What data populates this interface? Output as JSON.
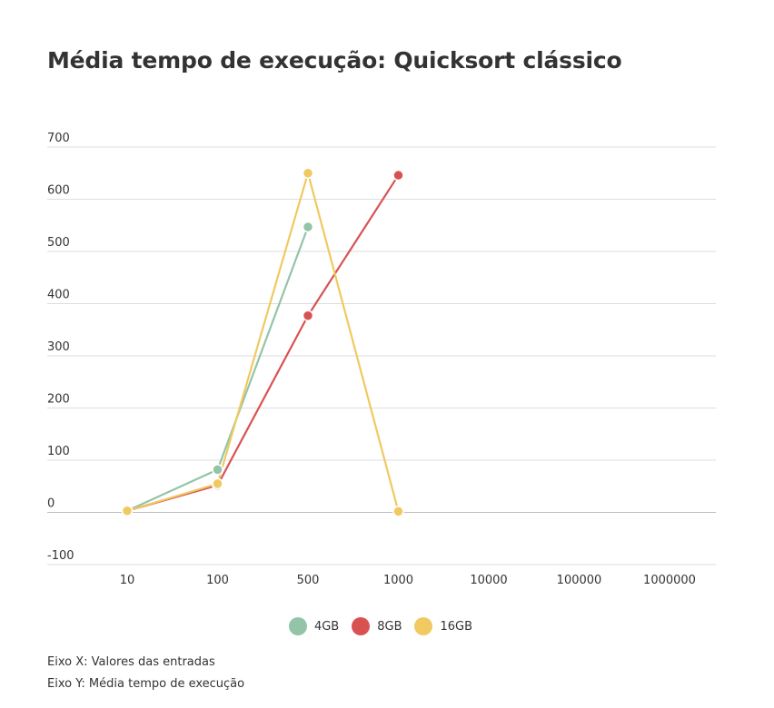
{
  "title": "Média tempo de execução: Quicksort clássico",
  "notes": {
    "x_axis": "Eixo X: Valores das entradas",
    "y_axis": "Eixo Y: Média tempo de execução"
  },
  "chart_data": {
    "type": "line",
    "title": "Média tempo de execução: Quicksort clássico",
    "categories": [
      "10",
      "100",
      "500",
      "1000",
      "10000",
      "100000",
      "1000000"
    ],
    "ylim": [
      -100,
      700
    ],
    "yticks": [
      700,
      600,
      500,
      400,
      300,
      200,
      100,
      0,
      -100
    ],
    "grid": true,
    "legend_position": "bottom-center",
    "series": [
      {
        "name": "4GB",
        "color": "#93c4a8",
        "values": [
          3,
          82,
          547,
          null,
          null,
          null,
          null
        ]
      },
      {
        "name": "8GB",
        "color": "#d95252",
        "values": [
          3,
          52,
          377,
          646,
          null,
          null,
          null
        ]
      },
      {
        "name": "16GB",
        "color": "#f0c960",
        "values": [
          3,
          55,
          650,
          2,
          null,
          null,
          null
        ]
      }
    ]
  }
}
